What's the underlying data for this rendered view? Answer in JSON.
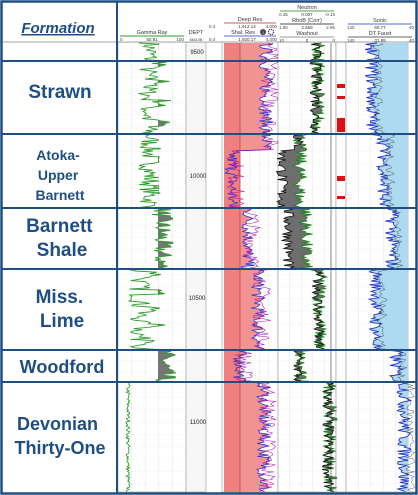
{
  "header": {
    "formation_title": "Formation",
    "gamma_ray": {
      "title": "Gamma Ray",
      "min": "0",
      "mid": "50.91",
      "max": "150"
    },
    "dept": {
      "title": "DEPT",
      "sub": "5463.0B"
    },
    "resistivity": {
      "deep_title": "Deep Res",
      "deep_min": "0.4",
      "deep_mid": "1,912.14",
      "deep_max": "4,000",
      "shal_title": "Shal. Res",
      "shal_min": "0.4",
      "shal_mid": "1,920.17",
      "shal_max": "4,000"
    },
    "porosity": {
      "neutron_title": "Neutron",
      "neutron_min": "0.45",
      "neutron_mid": "0.007",
      "neutron_max": "-0.15",
      "rhob_title": "RhoB (Corr)",
      "rhob_min": "1.95",
      "rhob_mid": "2.669",
      "rhob_max": "2.95",
      "washout_title": "Washout",
      "washout_min": "10",
      "washout_mid": "0",
      "washout_max": "0"
    },
    "sonic": {
      "sonic_title": "Sonic",
      "sonic_min": "140",
      "sonic_mid": "50.77",
      "sonic_max": "40",
      "dt_title": "DT Faust",
      "dt_min": "140",
      "dt_mid": "31.89",
      "dt_max": "40"
    }
  },
  "depth_ticks": [
    "9500",
    "10000",
    "10500",
    "11000"
  ],
  "formations": [
    {
      "label_lines": [
        "Strawn"
      ]
    },
    {
      "label_lines": [
        "Atoka-",
        "Upper",
        "Barnett"
      ]
    },
    {
      "label_lines": [
        "Barnett",
        "Shale"
      ]
    },
    {
      "label_lines": [
        "Miss.",
        "Lime"
      ]
    },
    {
      "label_lines": [
        "Woodford"
      ]
    },
    {
      "label_lines": [
        "Devonian",
        "Thirty-One"
      ]
    }
  ],
  "colors": {
    "border": "#1f4f82",
    "formation_text": "#1f4f82",
    "gamma_green": "#2e9e2e",
    "shale_fill": "#666666",
    "res_fill": "#f08080",
    "res_blue": "#3333cc",
    "res_purple": "#aa00aa",
    "sonic_fill": "#aad8f0",
    "sonic_blue": "#2233cc",
    "neutron_green": "#118811",
    "density_black": "#111111"
  }
}
